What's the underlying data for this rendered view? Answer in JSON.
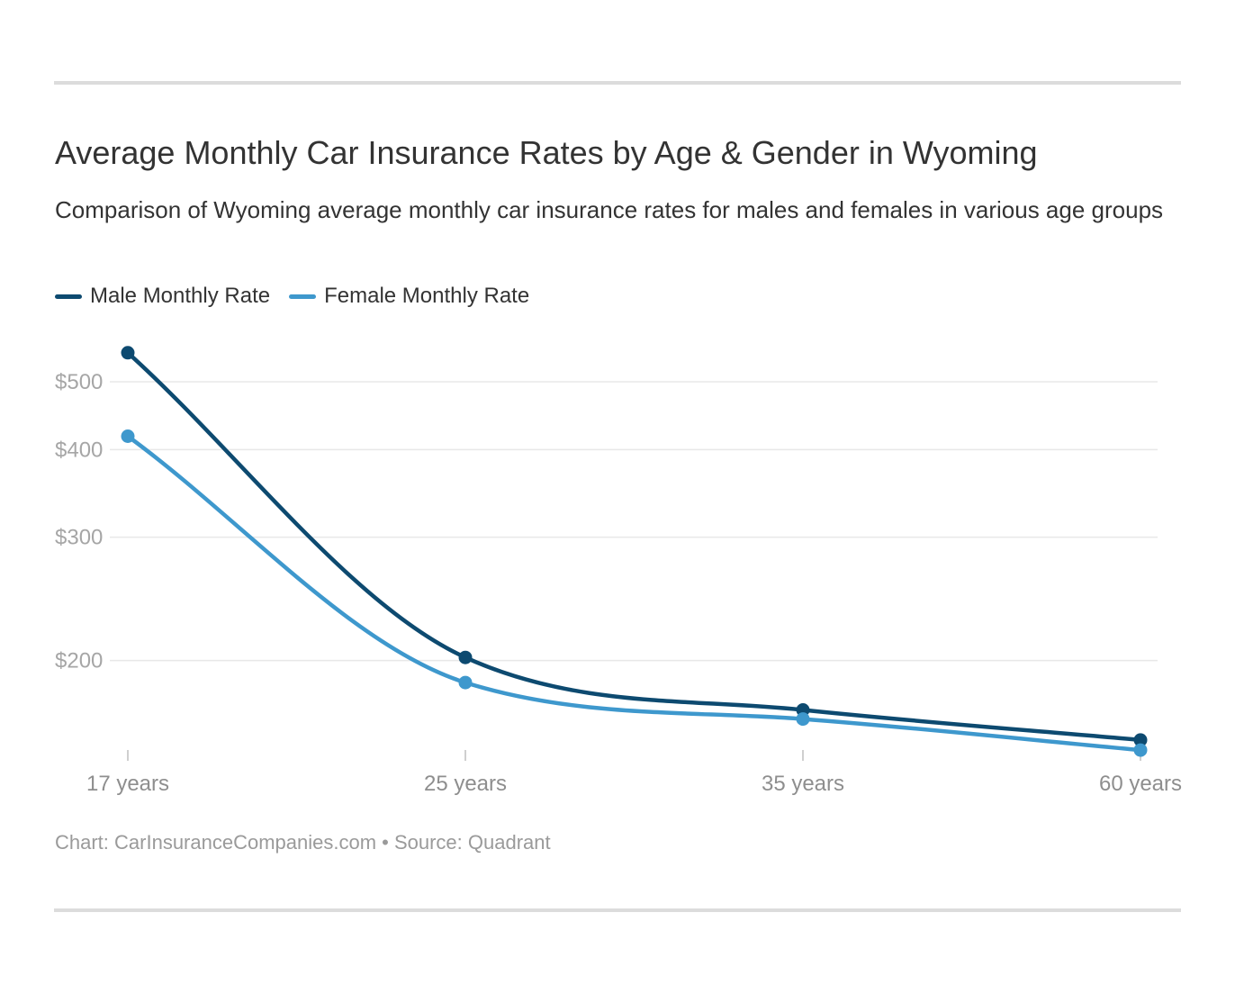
{
  "header": {
    "title": "Average Monthly Car Insurance Rates by Age & Gender in Wyoming",
    "subtitle": "Comparison of Wyoming average monthly car insurance rates for males and females in various age groups"
  },
  "footer": {
    "credit": "Chart: CarInsuranceCompanies.com • Source: Quadrant"
  },
  "chart_data": {
    "type": "line",
    "title": "Average Monthly Car Insurance Rates by Age & Gender in Wyoming",
    "subtitle": "Comparison of Wyoming average monthly car insurance rates for males and females in various age groups",
    "categories": [
      "17 years",
      "25 years",
      "35 years",
      "60 years"
    ],
    "series": [
      {
        "name": "Male Monthly Rate",
        "color": "#0d4a70",
        "values": [
          550,
          202,
          170,
          154
        ]
      },
      {
        "name": "Female Monthly Rate",
        "color": "#3e98cd",
        "values": [
          418,
          186,
          165,
          149
        ]
      }
    ],
    "xlabel": "",
    "ylabel": "",
    "x_axis": {
      "labels": [
        "17 years",
        "25 years",
        "35 years",
        "60 years"
      ],
      "tick_marks": true
    },
    "y_axis": {
      "scale": "log",
      "grid": true,
      "ticks": [
        {
          "value": 500,
          "label": "$500"
        },
        {
          "value": 400,
          "label": "$400"
        },
        {
          "value": 300,
          "label": "$300"
        },
        {
          "value": 200,
          "label": "$200"
        }
      ]
    },
    "legend_position": "top-left",
    "source": "Chart: CarInsuranceCompanies.com • Source: Quadrant"
  }
}
